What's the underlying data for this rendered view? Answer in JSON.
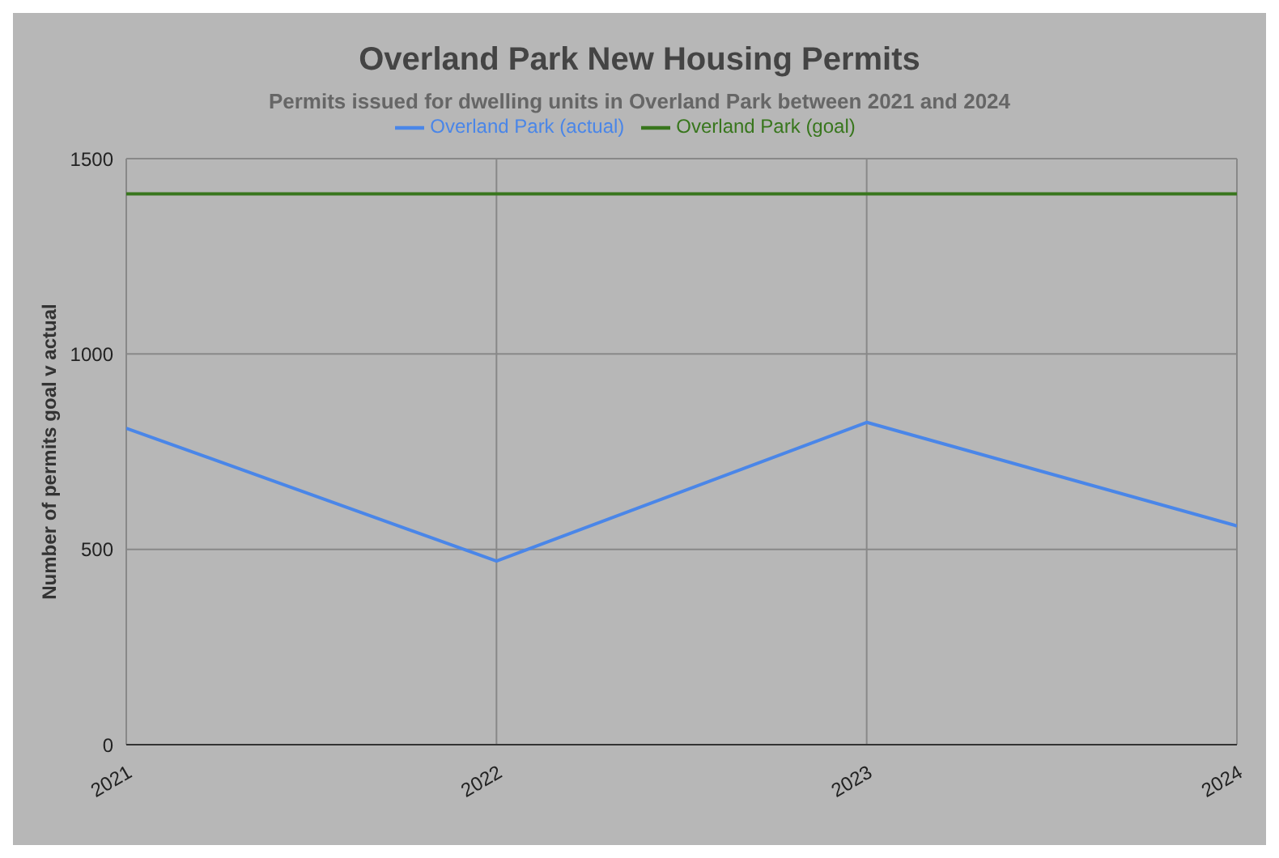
{
  "chart_data": {
    "type": "line",
    "title": "Overland Park New Housing Permits",
    "subtitle": "Permits issued for dwelling units in Overland Park between 2021 and 2024",
    "ylabel": "Number of permits goal v actual",
    "x": [
      2021,
      2022,
      2023,
      2024
    ],
    "xlim": [
      2021,
      2024
    ],
    "xticks": [
      2021,
      2022,
      2023,
      2024
    ],
    "series": [
      {
        "name": "Overland Park (actual)",
        "color": "#4a86e8",
        "values": [
          810,
          470,
          825,
          560
        ]
      },
      {
        "name": "Overland Park (goal)",
        "color": "#38761d",
        "values": [
          1410,
          1410,
          1410,
          1410
        ]
      }
    ],
    "ylim": [
      0,
      1500
    ],
    "yticks": [
      0,
      500,
      1000,
      1500
    ],
    "grid": true,
    "legend": "top",
    "marker": "none",
    "line_style": "solid"
  }
}
